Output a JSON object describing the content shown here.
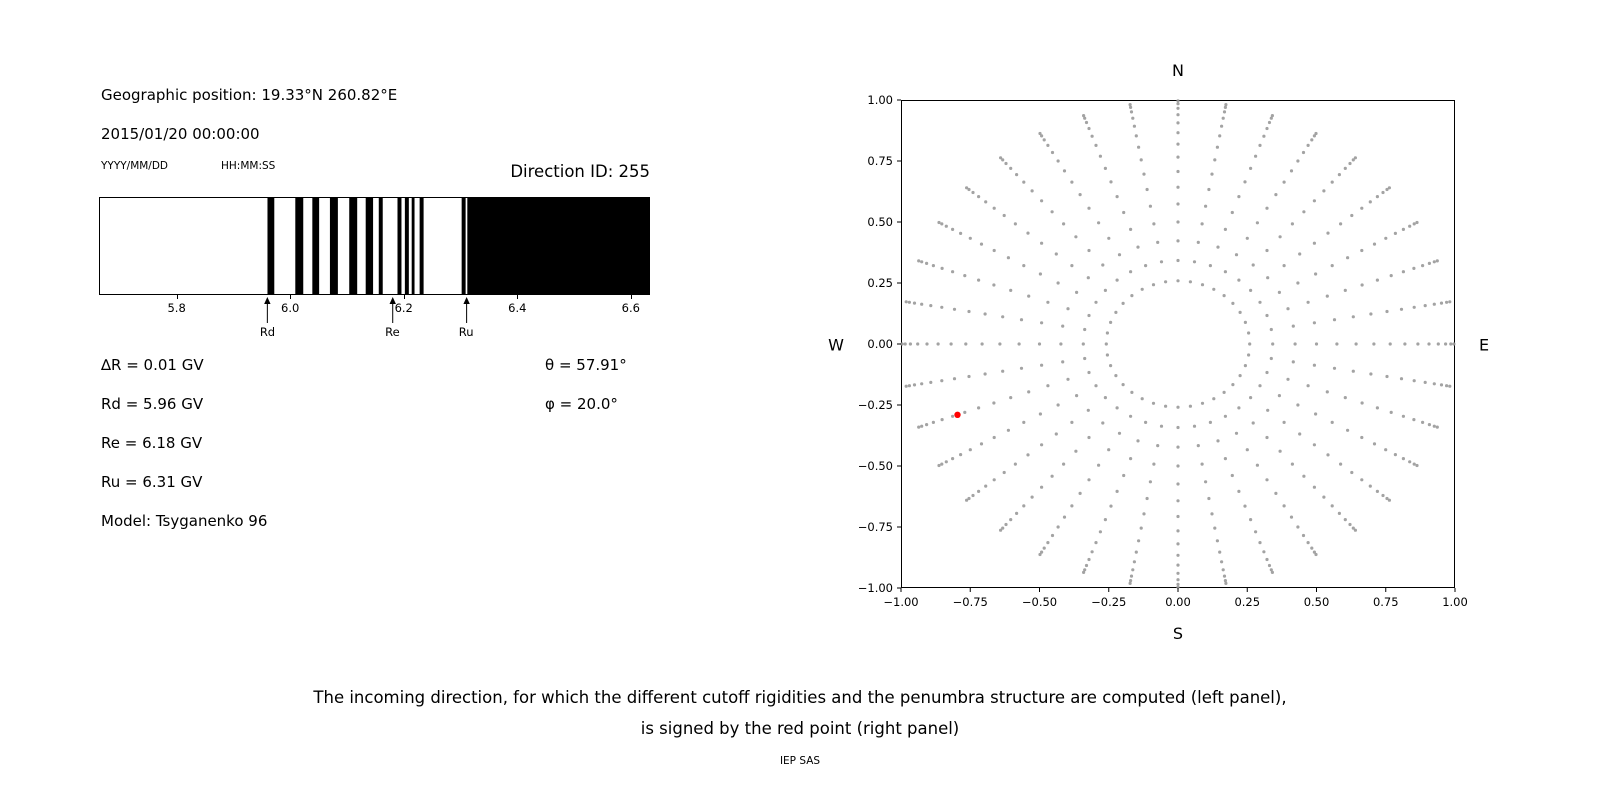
{
  "page": {
    "background": "#ffffff"
  },
  "left_panel": {
    "geo_position": "Geographic position: 19.33°N 260.82°E",
    "datetime": "2015/01/20 00:00:00",
    "date_format_label": "YYYY/MM/DD",
    "time_format_label": "HH:MM:SS",
    "direction_id_label": "Direction ID: 255",
    "delta_r": "∆R = 0.01 GV",
    "rd": "Rd = 5.96 GV",
    "re": "Re = 6.18 GV",
    "ru": "Ru = 6.31 GV",
    "model": "Model: Tsyganenko 96",
    "theta": "θ = 57.91°",
    "phi": "φ = 20.0°"
  },
  "caption": {
    "line1": "The incoming direction, for which the different cutoff rigidities and the penumbra structure are computed (left panel),",
    "line2": "is signed by the red point (right panel)",
    "credit": "IEP SAS"
  },
  "chart_data": [
    {
      "name": "penumbra-structure",
      "type": "bar",
      "description": "Penumbra structure: black bands = forbidden rigidities, white = allowed; x axis in GV",
      "xlim": [
        5.665,
        6.632
      ],
      "xticks": [
        "5.8",
        "6.0",
        "6.2",
        "6.4",
        "6.6"
      ],
      "xtick_values": [
        5.8,
        6.0,
        6.2,
        6.4,
        6.6
      ],
      "black_bands_gv": [
        [
          5.96,
          5.972
        ],
        [
          6.009,
          6.023
        ],
        [
          6.039,
          6.051
        ],
        [
          6.07,
          6.084
        ],
        [
          6.104,
          6.118
        ],
        [
          6.133,
          6.146
        ],
        [
          6.156,
          6.163
        ],
        [
          6.189,
          6.196
        ],
        [
          6.202,
          6.209
        ],
        [
          6.214,
          6.219
        ],
        [
          6.228,
          6.235
        ],
        [
          6.302,
          6.309
        ],
        [
          6.312,
          6.632
        ]
      ],
      "markers": [
        {
          "label": "Rd",
          "x": 5.96
        },
        {
          "label": "Re",
          "x": 6.18
        },
        {
          "label": "Ru",
          "x": 6.31
        }
      ],
      "bar_color": "#000000",
      "background": "#ffffff"
    },
    {
      "name": "incoming-directions",
      "type": "scatter",
      "title": "",
      "xlim": [
        -1.0,
        1.0
      ],
      "ylim": [
        -1.0,
        1.0
      ],
      "xticks": [
        "−1.00",
        "−0.75",
        "−0.50",
        "−0.25",
        "0.00",
        "0.25",
        "0.50",
        "0.75",
        "1.00"
      ],
      "xtick_values": [
        -1.0,
        -0.75,
        -0.5,
        -0.25,
        0.0,
        0.25,
        0.5,
        0.75,
        1.0
      ],
      "yticks": [
        "1.00",
        "0.75",
        "0.50",
        "0.25",
        "0.00",
        "−0.25",
        "−0.50",
        "−0.75",
        "−1.00"
      ],
      "ytick_values": [
        1.0,
        0.75,
        0.5,
        0.25,
        0.0,
        -0.25,
        -0.5,
        -0.75,
        -1.0
      ],
      "compass": {
        "top": "N",
        "bottom": "S",
        "left": "W",
        "right": "E"
      },
      "grid_points": {
        "description": "Gray dots: grid of incoming directions; radius = sin(zenith), azimuth measured around compass",
        "azimuth_deg_start": 0,
        "azimuth_deg_step": 10,
        "azimuth_count": 36,
        "zenith_deg_start": 15,
        "zenith_deg_step": 5,
        "zenith_count": 15,
        "color": "#999999",
        "dot_radius_px": 1.6
      },
      "red_point": {
        "x": -0.796,
        "y": -0.29,
        "theta_deg": 57.91,
        "phi_deg": 20.0,
        "color": "#ff0000"
      }
    }
  ]
}
